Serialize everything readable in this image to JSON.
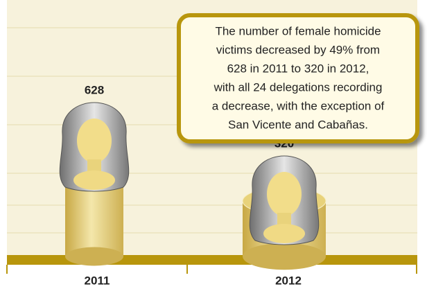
{
  "chart_data": {
    "type": "bar",
    "categories": [
      "2011",
      "2012"
    ],
    "values": [
      628,
      320
    ],
    "color": "#e8d27a",
    "annotation": [
      "The number of female homicide",
      "victims decreased by 49% from",
      "628 in 2011 to 320 in 2012,",
      "with all 24 delegations recording",
      "a decrease, with the exception of",
      "San Vicente and Cabañas."
    ]
  }
}
